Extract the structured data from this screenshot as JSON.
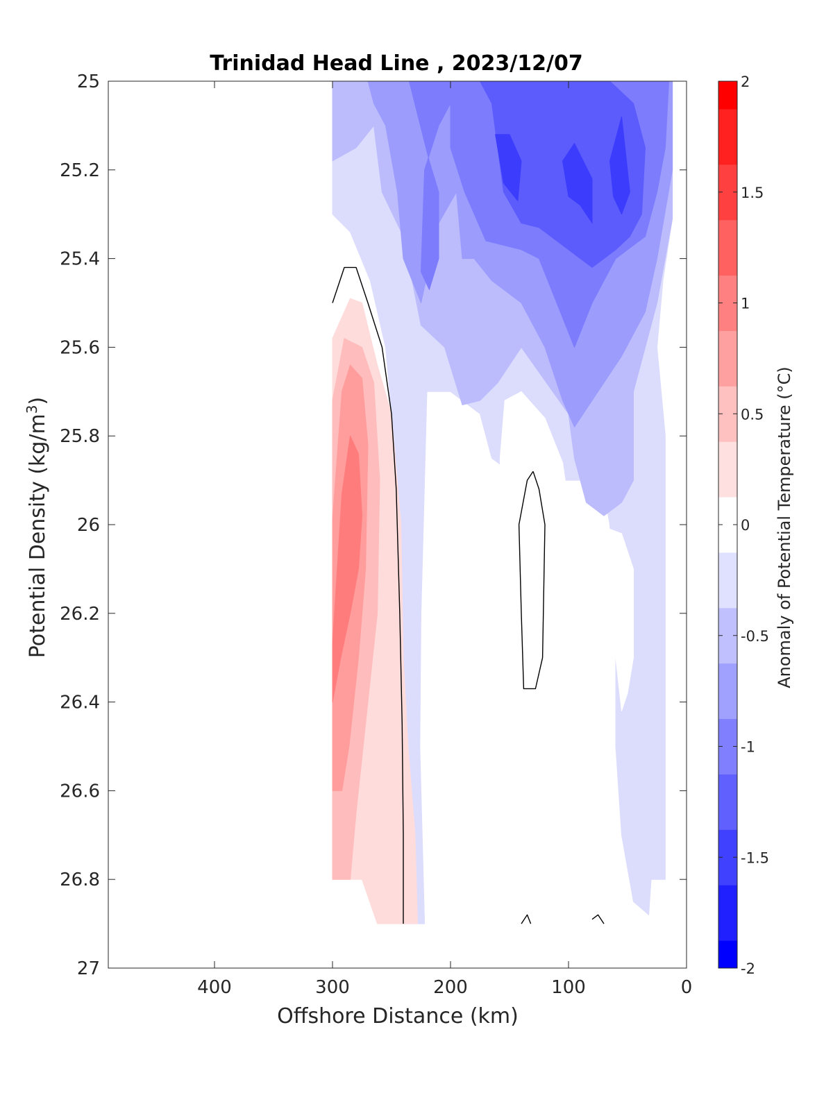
{
  "chart_data": {
    "type": "contour",
    "title": "Trinidad Head Line , 2023/12/07",
    "xlabel": "Offshore Distance (km)",
    "ylabel_main": "Potential Density (kg/m",
    "ylabel_sup": "3",
    "ylabel_close": ")",
    "xlim": [
      490,
      0
    ],
    "ylim": [
      25,
      27
    ],
    "x_reversed": true,
    "y_reversed": true,
    "x_ticks": [
      {
        "value": 400,
        "label": "400"
      },
      {
        "value": 300,
        "label": "300"
      },
      {
        "value": 200,
        "label": "200"
      },
      {
        "value": 100,
        "label": "100"
      },
      {
        "value": 0,
        "label": "0"
      }
    ],
    "y_ticks": [
      {
        "value": 25,
        "label": "25"
      },
      {
        "value": 25.2,
        "label": "25.2"
      },
      {
        "value": 25.4,
        "label": "25.4"
      },
      {
        "value": 25.6,
        "label": "25.6"
      },
      {
        "value": 25.8,
        "label": "25.8"
      },
      {
        "value": 26,
        "label": "26"
      },
      {
        "value": 26.2,
        "label": "26.2"
      },
      {
        "value": 26.4,
        "label": "26.4"
      },
      {
        "value": 26.6,
        "label": "26.6"
      },
      {
        "value": 26.8,
        "label": "26.8"
      },
      {
        "value": 27,
        "label": "27"
      }
    ],
    "colorbar": {
      "label": "Anomaly of Potential Temperature (°C)",
      "range": [
        -2,
        2
      ],
      "step": 0.25,
      "ticks": [
        {
          "value": 2,
          "label": "2"
        },
        {
          "value": 1.5,
          "label": "1.5"
        },
        {
          "value": 1,
          "label": "1"
        },
        {
          "value": 0.5,
          "label": "0.5"
        },
        {
          "value": 0,
          "label": "0"
        },
        {
          "value": -0.5,
          "label": "-0.5"
        },
        {
          "value": -1,
          "label": "-1"
        },
        {
          "value": -1.5,
          "label": "-1.5"
        },
        {
          "value": -2,
          "label": "-2"
        }
      ],
      "colors": [
        "#0000ff",
        "#2020ff",
        "#4040ff",
        "#6060ff",
        "#8080ff",
        "#a0a0ff",
        "#c0c0ff",
        "#e0e0ff",
        "#ffffff",
        "#ffe0e0",
        "#ffc0c0",
        "#ffa0a0",
        "#ff8080",
        "#ff6060",
        "#ff4040",
        "#ff2020",
        "#ff0000"
      ]
    },
    "zero_contour_color": "#000000",
    "regions": [
      {
        "level": -0.375,
        "color": "#dcdcfd",
        "points": [
          [
            300,
            25.0
          ],
          [
            12,
            25.0
          ],
          [
            12,
            25.31
          ],
          [
            20,
            25.45
          ],
          [
            25,
            25.6
          ],
          [
            18,
            25.8
          ],
          [
            18,
            26.8
          ],
          [
            30,
            26.8
          ],
          [
            32,
            26.88
          ],
          [
            45,
            26.85
          ],
          [
            55,
            26.7
          ],
          [
            60,
            26.5
          ],
          [
            60,
            26.2
          ],
          [
            65,
            26.0
          ],
          [
            72,
            25.9
          ],
          [
            140,
            25.9
          ],
          [
            165,
            25.85
          ],
          [
            175,
            25.75
          ],
          [
            200,
            25.7
          ],
          [
            220,
            25.7
          ],
          [
            225,
            26.2
          ],
          [
            226,
            26.5
          ],
          [
            222,
            26.9
          ],
          [
            240,
            26.9
          ],
          [
            240,
            26.6
          ],
          [
            242,
            26.3
          ],
          [
            245,
            26.0
          ],
          [
            250,
            25.75
          ],
          [
            255,
            25.6
          ],
          [
            268,
            25.45
          ],
          [
            285,
            25.34
          ],
          [
            300,
            25.3
          ]
        ]
      },
      {
        "level": -0.625,
        "color": "#bcbcfd",
        "points": [
          [
            300,
            25.0
          ],
          [
            12,
            25.0
          ],
          [
            12,
            25.31
          ],
          [
            25,
            25.5
          ],
          [
            45,
            25.7
          ],
          [
            45,
            25.9
          ],
          [
            55,
            25.95
          ],
          [
            70,
            25.98
          ],
          [
            85,
            25.95
          ],
          [
            95,
            25.85
          ],
          [
            100,
            25.75
          ],
          [
            140,
            25.6
          ],
          [
            160,
            25.68
          ],
          [
            175,
            25.72
          ],
          [
            190,
            25.73
          ],
          [
            205,
            25.6
          ],
          [
            225,
            25.55
          ],
          [
            240,
            25.35
          ],
          [
            258,
            25.25
          ],
          [
            265,
            25.1
          ],
          [
            280,
            25.15
          ],
          [
            300,
            25.18
          ]
        ]
      },
      {
        "level": -0.875,
        "color": "#9c9cfd",
        "points": [
          [
            270,
            25.0
          ],
          [
            12,
            25.0
          ],
          [
            12,
            25.2
          ],
          [
            25,
            25.4
          ],
          [
            35,
            25.52
          ],
          [
            55,
            25.62
          ],
          [
            80,
            25.72
          ],
          [
            95,
            25.78
          ],
          [
            105,
            25.72
          ],
          [
            120,
            25.6
          ],
          [
            140,
            25.5
          ],
          [
            165,
            25.45
          ],
          [
            180,
            25.4
          ],
          [
            190,
            25.4
          ],
          [
            195,
            25.25
          ],
          [
            210,
            25.32
          ],
          [
            225,
            25.5
          ],
          [
            240,
            25.4
          ],
          [
            245,
            25.25
          ],
          [
            255,
            25.1
          ],
          [
            265,
            25.05
          ]
        ]
      },
      {
        "level": -1.125,
        "color": "#7c7cfd",
        "points": [
          [
            235,
            25.0
          ],
          [
            15,
            25.0
          ],
          [
            18,
            25.15
          ],
          [
            25,
            25.25
          ],
          [
            35,
            25.35
          ],
          [
            60,
            25.4
          ],
          [
            80,
            25.5
          ],
          [
            95,
            25.6
          ],
          [
            110,
            25.5
          ],
          [
            125,
            25.4
          ],
          [
            140,
            25.38
          ],
          [
            170,
            25.36
          ],
          [
            188,
            25.25
          ],
          [
            200,
            25.15
          ],
          [
            200,
            25.05
          ],
          [
            210,
            25.1
          ],
          [
            222,
            25.2
          ],
          [
            225,
            25.43
          ],
          [
            218,
            25.47
          ],
          [
            210,
            25.4
          ],
          [
            210,
            25.25
          ],
          [
            218,
            25.18
          ]
        ]
      },
      {
        "level": -1.375,
        "color": "#5c5cfd",
        "points": [
          [
            175,
            25.0
          ],
          [
            65,
            25.0
          ],
          [
            45,
            25.05
          ],
          [
            35,
            25.15
          ],
          [
            38,
            25.3
          ],
          [
            48,
            25.35
          ],
          [
            60,
            25.38
          ],
          [
            80,
            25.42
          ],
          [
            100,
            25.38
          ],
          [
            125,
            25.33
          ],
          [
            140,
            25.32
          ],
          [
            155,
            25.25
          ],
          [
            160,
            25.15
          ],
          [
            165,
            25.05
          ]
        ]
      },
      {
        "level": -1.625,
        "color": "#3c3cfd",
        "points": [
          [
            162,
            25.12
          ],
          [
            150,
            25.12
          ],
          [
            140,
            25.18
          ],
          [
            143,
            25.27
          ],
          [
            155,
            25.23
          ]
        ]
      },
      {
        "level": -1.625,
        "color": "#3c3cfd",
        "points": [
          [
            105,
            25.18
          ],
          [
            95,
            25.14
          ],
          [
            80,
            25.22
          ],
          [
            80,
            25.32
          ],
          [
            90,
            25.28
          ],
          [
            100,
            25.26
          ]
        ]
      },
      {
        "level": -1.625,
        "color": "#3c3cfd",
        "points": [
          [
            65,
            25.18
          ],
          [
            55,
            25.08
          ],
          [
            48,
            25.25
          ],
          [
            55,
            25.3
          ],
          [
            62,
            25.26
          ]
        ]
      },
      {
        "level": 0.375,
        "color": "#ffdcdc",
        "points": [
          [
            300,
            25.58
          ],
          [
            285,
            25.49
          ],
          [
            275,
            25.5
          ],
          [
            262,
            25.64
          ],
          [
            250,
            25.75
          ],
          [
            242,
            26.0
          ],
          [
            240,
            26.3
          ],
          [
            236,
            26.5
          ],
          [
            230,
            26.7
          ],
          [
            228,
            26.9
          ],
          [
            262,
            26.9
          ],
          [
            275,
            26.8
          ],
          [
            300,
            26.8
          ]
        ]
      },
      {
        "level": 0.625,
        "color": "#ffbcbc",
        "points": [
          [
            300,
            25.72
          ],
          [
            290,
            25.58
          ],
          [
            275,
            25.6
          ],
          [
            265,
            25.68
          ],
          [
            260,
            25.9
          ],
          [
            262,
            26.2
          ],
          [
            270,
            26.4
          ],
          [
            280,
            26.65
          ],
          [
            285,
            26.8
          ],
          [
            300,
            26.8
          ]
        ]
      },
      {
        "level": 0.875,
        "color": "#ff9c9c",
        "points": [
          [
            300,
            25.99
          ],
          [
            292,
            25.7
          ],
          [
            285,
            25.64
          ],
          [
            275,
            25.67
          ],
          [
            270,
            25.82
          ],
          [
            272,
            26.1
          ],
          [
            278,
            26.3
          ],
          [
            286,
            26.5
          ],
          [
            292,
            26.6
          ],
          [
            300,
            26.6
          ]
        ]
      },
      {
        "level": 1.125,
        "color": "#ff7c7c",
        "points": [
          [
            300,
            26.27
          ],
          [
            292,
            25.93
          ],
          [
            285,
            25.8
          ],
          [
            278,
            25.84
          ],
          [
            275,
            25.98
          ],
          [
            278,
            26.1
          ],
          [
            285,
            26.2
          ],
          [
            293,
            26.3
          ],
          [
            300,
            26.4
          ]
        ]
      },
      {
        "level": 0,
        "color": "#ffffff",
        "points": [
          [
            154,
            25.72
          ],
          [
            140,
            25.7
          ],
          [
            120,
            25.76
          ],
          [
            105,
            25.86
          ],
          [
            98,
            25.99
          ],
          [
            100,
            26.2
          ],
          [
            102,
            26.4
          ],
          [
            112,
            26.57
          ],
          [
            125,
            26.63
          ],
          [
            140,
            26.6
          ],
          [
            150,
            26.5
          ],
          [
            155,
            26.3
          ],
          [
            158,
            26.0
          ],
          [
            158,
            25.85
          ]
        ]
      },
      {
        "level": 0,
        "color": "#ffffff",
        "points": [
          [
            75,
            26.0
          ],
          [
            65,
            26.1
          ],
          [
            60,
            26.3
          ],
          [
            55,
            26.42
          ],
          [
            50,
            26.38
          ],
          [
            45,
            26.3
          ],
          [
            45,
            26.1
          ],
          [
            55,
            26.02
          ]
        ]
      }
    ],
    "zero_contours": [
      [
        [
          300,
          25.5
        ],
        [
          290,
          25.42
        ],
        [
          280,
          25.42
        ],
        [
          270,
          25.5
        ],
        [
          258,
          25.6
        ],
        [
          250,
          25.75
        ],
        [
          246,
          25.92
        ],
        [
          243,
          26.2
        ],
        [
          241,
          26.45
        ],
        [
          240,
          26.7
        ],
        [
          240,
          26.9
        ]
      ],
      [
        [
          130,
          25.88
        ],
        [
          125,
          25.92
        ],
        [
          120,
          26.0
        ],
        [
          122,
          26.3
        ],
        [
          128,
          26.37
        ],
        [
          138,
          26.37
        ],
        [
          140,
          26.2
        ],
        [
          142,
          26.0
        ],
        [
          135,
          25.9
        ],
        [
          130,
          25.88
        ]
      ],
      [
        [
          140,
          26.9
        ],
        [
          135,
          26.88
        ],
        [
          132,
          26.9
        ]
      ],
      [
        [
          80,
          26.89
        ],
        [
          75,
          26.88
        ],
        [
          70,
          26.9
        ]
      ]
    ]
  }
}
